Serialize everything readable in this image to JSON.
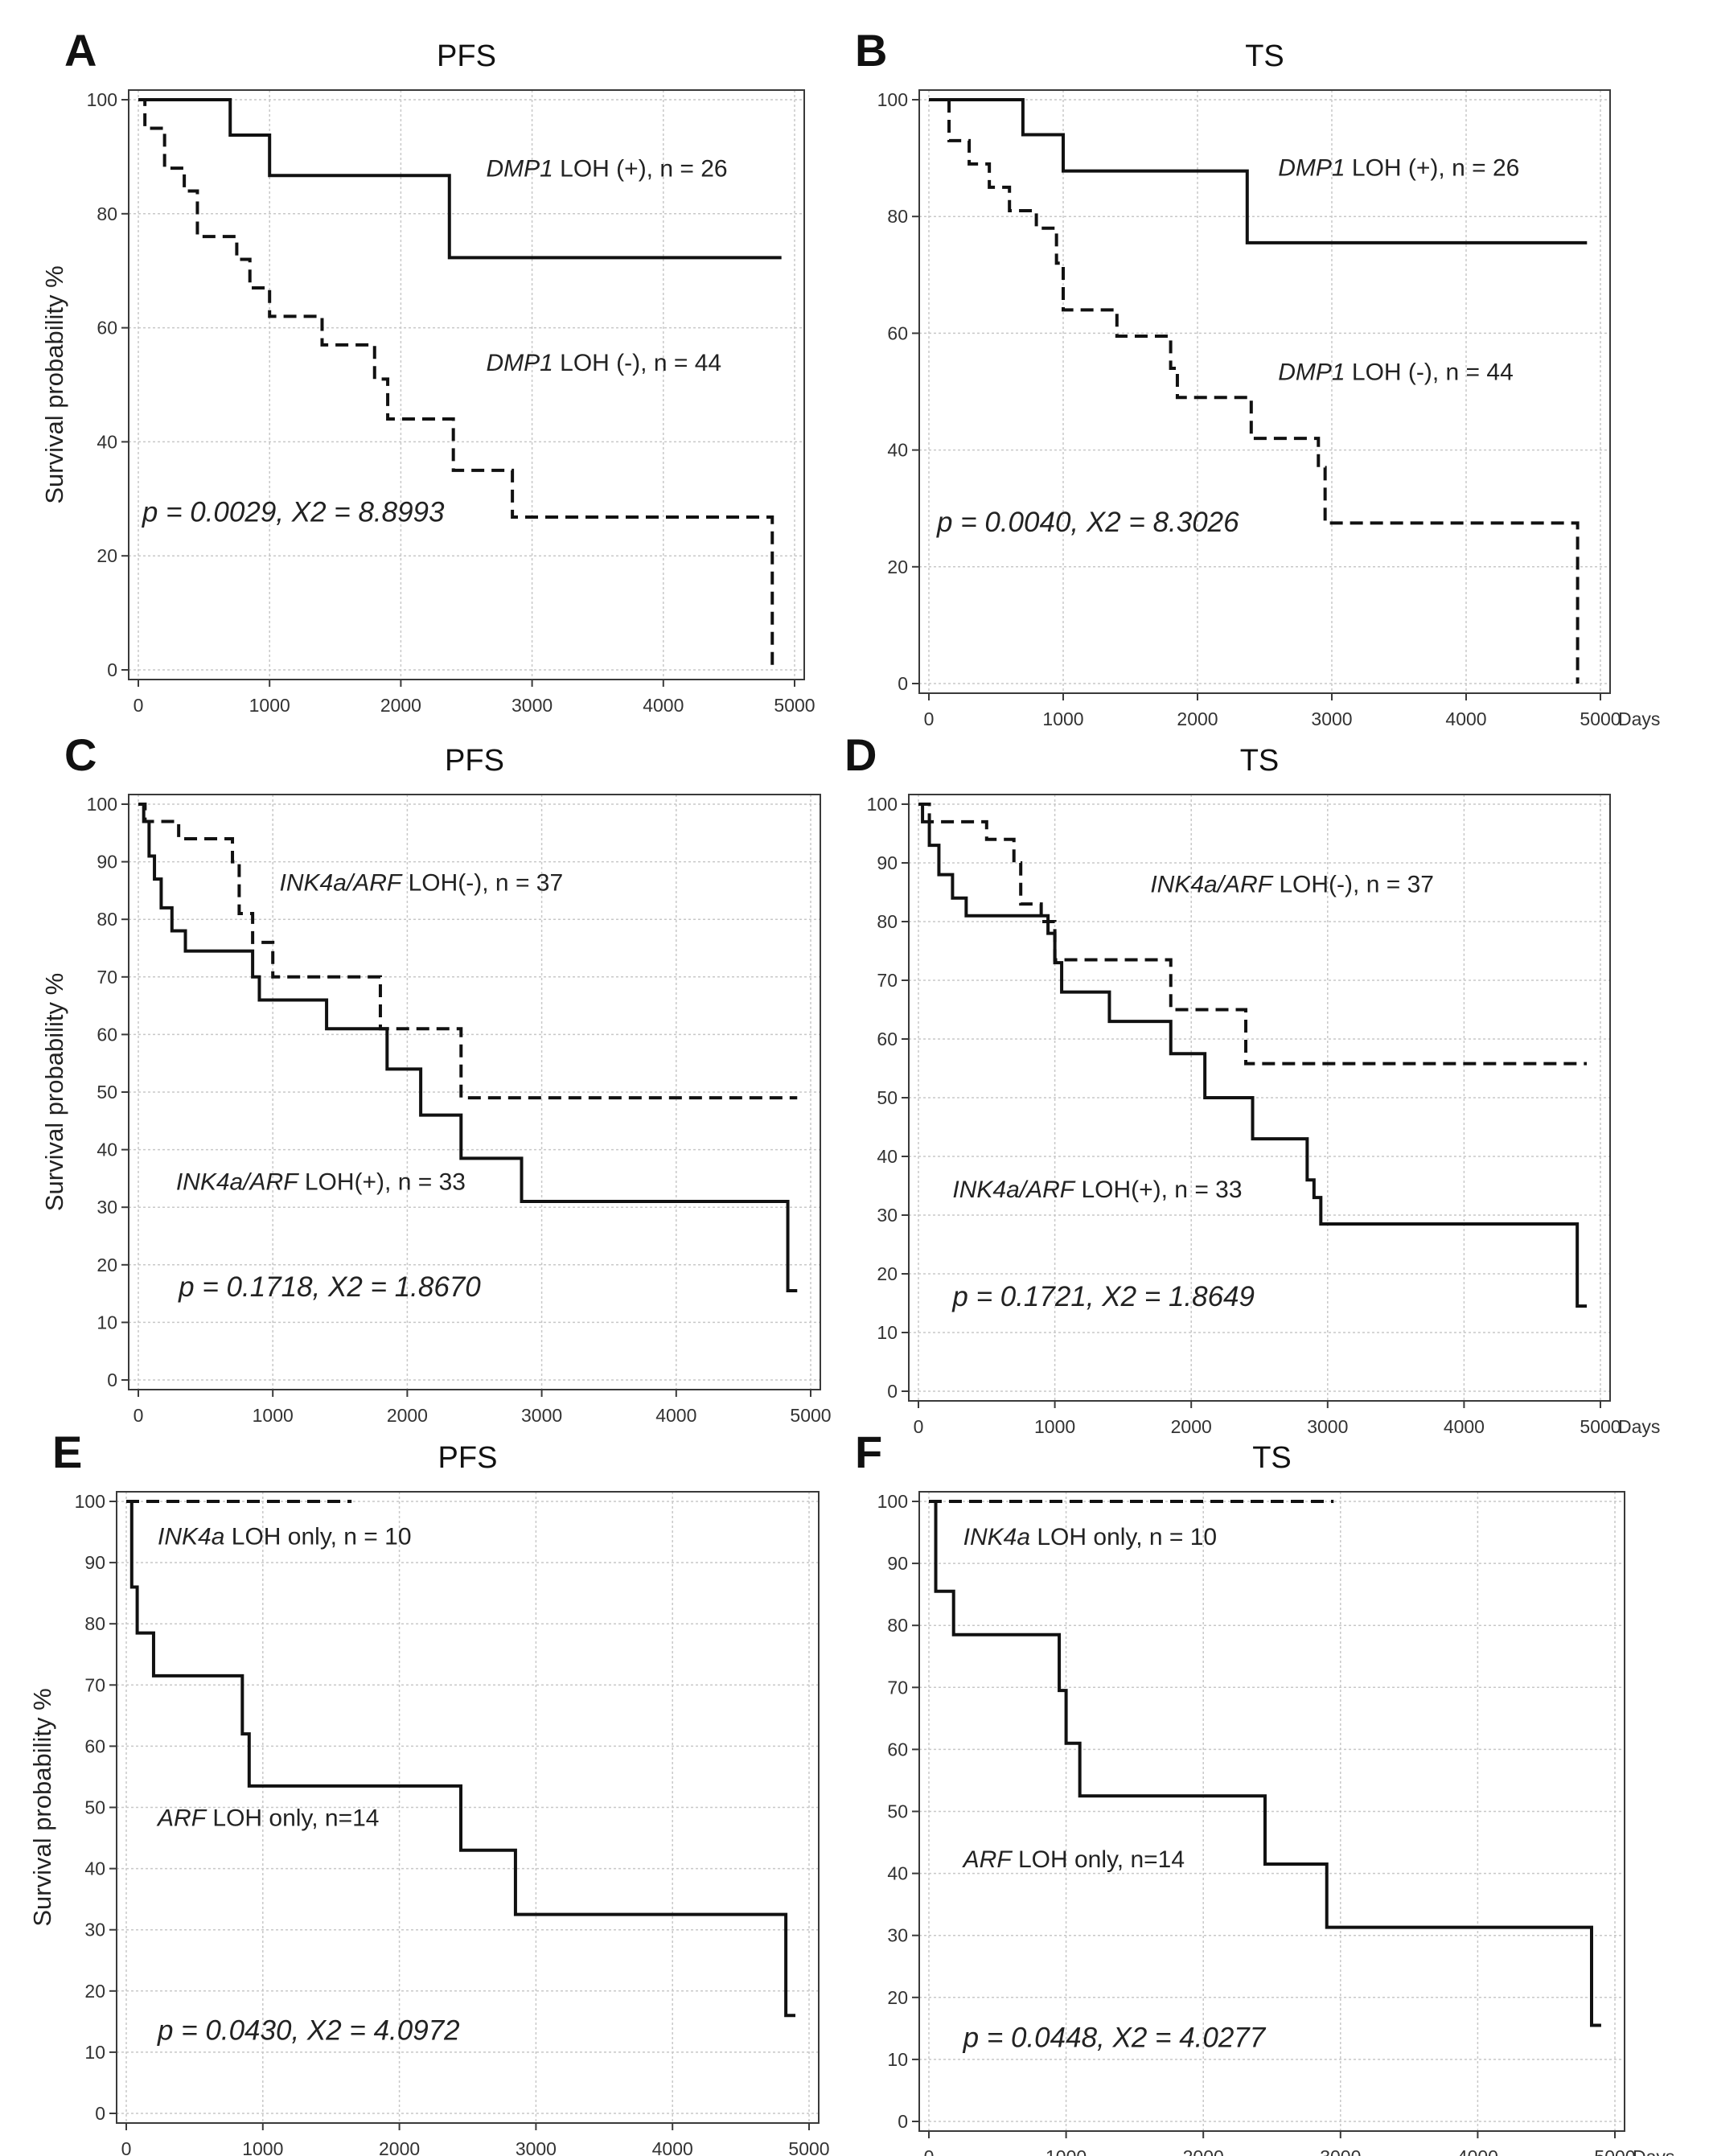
{
  "figure": {
    "days_label": "Days"
  },
  "chart_data": [
    {
      "type": "line",
      "panel_letter": "A",
      "title": "PFS",
      "ylabel": "Survival probability %",
      "xlabel": "",
      "show_days": false,
      "xlim": [
        0,
        5000
      ],
      "ylim": [
        0,
        100
      ],
      "xticks": [
        0,
        1000,
        2000,
        3000,
        4000,
        5000
      ],
      "yticks": [
        0,
        20,
        40,
        60,
        80,
        100
      ],
      "yticklabels": [
        "0",
        "20",
        "40",
        "60",
        "80",
        "100"
      ],
      "series": [
        {
          "name": "DMP1 LOH (+), n = 26",
          "style": "solid",
          "x": [
            0,
            700,
            1000,
            2370,
            4900
          ],
          "y": [
            100,
            93.8,
            86.7,
            72.3,
            72.3
          ]
        },
        {
          "name": "DMP1 LOH (-), n = 44",
          "style": "dashed",
          "x": [
            0,
            50,
            200,
            350,
            450,
            750,
            850,
            1000,
            1400,
            1800,
            1900,
            2400,
            2850,
            4800,
            4830
          ],
          "y": [
            100,
            95,
            88,
            84,
            76,
            72,
            67,
            62,
            57,
            51,
            44,
            35,
            26.8,
            26.8,
            0
          ]
        }
      ],
      "annotations": [
        {
          "id": "ann1",
          "italic": "DMP1",
          "text": " LOH (+), n = 26",
          "x": 2650,
          "y": 86.5,
          "anchor": "start",
          "size": 30
        },
        {
          "id": "ann2",
          "italic": "DMP1",
          "text": " LOH (-), n = 44",
          "x": 2650,
          "y": 52.5,
          "anchor": "start",
          "size": 30
        },
        {
          "id": "stat",
          "italic": "",
          "text": "p = 0.0029, X2 = 8.8993",
          "x": 30,
          "y": 26,
          "anchor": "start",
          "size": 35,
          "stat": true
        }
      ]
    },
    {
      "type": "line",
      "panel_letter": "B",
      "title": "TS",
      "ylabel": "",
      "xlabel": "Days",
      "show_days": true,
      "xlim": [
        0,
        5000
      ],
      "ylim": [
        0,
        100
      ],
      "xticks": [
        0,
        1000,
        2000,
        3000,
        4000,
        5000
      ],
      "yticks": [
        0,
        20,
        40,
        60,
        80,
        100
      ],
      "yticklabels": [
        "0",
        "20",
        "40",
        "60",
        "80",
        "100"
      ],
      "series": [
        {
          "name": "DMP1 LOH (+), n = 26",
          "style": "solid",
          "x": [
            0,
            700,
            1000,
            2370,
            4900
          ],
          "y": [
            100,
            94,
            87.8,
            75.5,
            75.5
          ]
        },
        {
          "name": "DMP1 LOH (-), n = 44",
          "style": "dashed",
          "x": [
            0,
            150,
            300,
            450,
            600,
            800,
            950,
            1000,
            1400,
            1800,
            1850,
            2400,
            2900,
            2950,
            4800,
            4830
          ],
          "y": [
            100,
            93,
            89,
            85,
            81,
            78,
            72,
            64,
            59.5,
            54,
            49,
            42,
            37,
            27.5,
            27.5,
            0
          ]
        }
      ],
      "annotations": [
        {
          "id": "ann1",
          "italic": "DMP1",
          "text": " LOH (+), n = 26",
          "x": 2600,
          "y": 87,
          "anchor": "start",
          "size": 30
        },
        {
          "id": "ann2",
          "italic": "DMP1",
          "text": " LOH (-), n = 44",
          "x": 2600,
          "y": 52,
          "anchor": "start",
          "size": 30
        },
        {
          "id": "stat",
          "italic": "",
          "text": "p = 0.0040, X2 = 8.3026",
          "x": 60,
          "y": 26,
          "anchor": "start",
          "size": 35,
          "stat": true
        }
      ]
    },
    {
      "type": "line",
      "panel_letter": "C",
      "title": "PFS",
      "ylabel": "Survival probability %",
      "xlabel": "",
      "show_days": false,
      "xlim": [
        0,
        5000
      ],
      "ylim": [
        0,
        100
      ],
      "xticks": [
        0,
        1000,
        2000,
        3000,
        4000,
        5000
      ],
      "yticks": [
        0,
        10,
        20,
        30,
        40,
        50,
        60,
        70,
        80,
        90,
        100
      ],
      "yticklabels": [
        "0",
        "10",
        "20",
        "30",
        "40",
        "50",
        "60",
        "70",
        "80",
        "90",
        "100"
      ],
      "series": [
        {
          "name": "INK4a/ARF LOH(-), n = 37",
          "style": "dashed",
          "x": [
            0,
            50,
            300,
            700,
            750,
            850,
            1000,
            1800,
            2400,
            4900
          ],
          "y": [
            100,
            97,
            94,
            90,
            81,
            76,
            70,
            61,
            49,
            49
          ]
        },
        {
          "name": "INK4a/ARF LOH(+), n = 33",
          "style": "solid",
          "x": [
            0,
            40,
            80,
            120,
            170,
            250,
            350,
            850,
            900,
            1400,
            1850,
            2100,
            2400,
            2850,
            4800,
            4830,
            4900
          ],
          "y": [
            100,
            97,
            91,
            87,
            82,
            78,
            74.5,
            70,
            66,
            61,
            54,
            46,
            38.5,
            31,
            31,
            15.5,
            15.5
          ]
        }
      ],
      "annotations": [
        {
          "id": "ann1",
          "italic": "INK4a/ARF",
          "text": " LOH(-), n = 37",
          "x": 1050,
          "y": 85,
          "anchor": "start",
          "size": 30
        },
        {
          "id": "ann2",
          "italic": "INK4a/ARF",
          "text": " LOH(+), n = 33",
          "x": 280,
          "y": 33,
          "anchor": "start",
          "size": 30
        },
        {
          "id": "stat",
          "italic": "",
          "text": "p = 0.1718, X2 = 1.8670",
          "x": 300,
          "y": 14.5,
          "anchor": "start",
          "size": 35,
          "stat": true
        }
      ]
    },
    {
      "type": "line",
      "panel_letter": "D",
      "title": "TS",
      "ylabel": "",
      "xlabel": "Days",
      "show_days": true,
      "xlim": [
        0,
        5000
      ],
      "ylim": [
        0,
        100
      ],
      "xticks": [
        0,
        1000,
        2000,
        3000,
        4000,
        5000
      ],
      "yticks": [
        0,
        10,
        20,
        30,
        40,
        50,
        60,
        70,
        80,
        90,
        100
      ],
      "yticklabels": [
        "0",
        "10",
        "20",
        "30",
        "40",
        "50",
        "60",
        "70",
        "80",
        "90",
        "100"
      ],
      "series": [
        {
          "name": "INK4a/ARF LOH(-), n = 37",
          "style": "dashed",
          "x": [
            0,
            80,
            500,
            700,
            750,
            900,
            1000,
            1850,
            2400,
            4900
          ],
          "y": [
            100,
            97,
            94,
            90,
            83,
            80,
            73.5,
            65,
            55.8,
            55.8
          ]
        },
        {
          "name": "INK4a/ARF LOH(+), n = 33",
          "style": "solid",
          "x": [
            0,
            30,
            80,
            150,
            250,
            350,
            950,
            1000,
            1050,
            1400,
            1850,
            2100,
            2450,
            2850,
            2900,
            2950,
            4800,
            4830,
            4900
          ],
          "y": [
            100,
            97,
            93,
            88,
            84,
            81,
            78,
            73,
            68,
            63,
            57.5,
            50,
            43,
            36,
            33,
            28.5,
            28.5,
            14.5,
            14.5
          ]
        }
      ],
      "annotations": [
        {
          "id": "ann1",
          "italic": "INK4a/ARF",
          "text": " LOH(-), n = 37",
          "x": 1700,
          "y": 85,
          "anchor": "start",
          "size": 30
        },
        {
          "id": "ann2",
          "italic": "INK4a/ARF",
          "text": " LOH(+), n = 33",
          "x": 250,
          "y": 33,
          "anchor": "start",
          "size": 30
        },
        {
          "id": "stat",
          "italic": "",
          "text": "p = 0.1721, X2 = 1.8649",
          "x": 250,
          "y": 14.5,
          "anchor": "start",
          "size": 35,
          "stat": true
        }
      ]
    },
    {
      "type": "line",
      "panel_letter": "E",
      "title": "PFS",
      "ylabel": "Survival probability %",
      "xlabel": "",
      "show_days": false,
      "xlim": [
        0,
        5000
      ],
      "ylim": [
        0,
        100
      ],
      "xticks": [
        0,
        1000,
        2000,
        3000,
        4000,
        5000
      ],
      "yticks": [
        0,
        10,
        20,
        30,
        40,
        50,
        60,
        70,
        80,
        90,
        100
      ],
      "yticklabels": [
        "0",
        "10",
        "20",
        "30",
        "40",
        "50",
        "60",
        "70",
        "80",
        "90",
        "100"
      ],
      "series": [
        {
          "name": "INK4a LOH only, n = 10",
          "style": "dashed",
          "x": [
            0,
            1650
          ],
          "y": [
            100,
            100
          ]
        },
        {
          "name": "ARF LOH only, n=14",
          "style": "solid",
          "x": [
            0,
            40,
            80,
            200,
            850,
            900,
            2450,
            2850,
            4800,
            4830,
            4900
          ],
          "y": [
            100,
            86,
            78.5,
            71.5,
            62,
            53.5,
            43,
            32.5,
            32.5,
            16,
            16
          ]
        }
      ],
      "annotations": [
        {
          "id": "ann1",
          "italic": "INK4a",
          "text": " LOH only, n = 10",
          "x": 230,
          "y": 93,
          "anchor": "start",
          "size": 30
        },
        {
          "id": "ann2",
          "italic": "ARF",
          "text": " LOH only, n=14",
          "x": 230,
          "y": 47,
          "anchor": "start",
          "size": 30
        },
        {
          "id": "stat",
          "italic": "",
          "text": "p = 0.0430, X2 = 4.0972",
          "x": 230,
          "y": 12,
          "anchor": "start",
          "size": 35,
          "stat": true
        }
      ]
    },
    {
      "type": "line",
      "panel_letter": "F",
      "title": "TS",
      "ylabel": "",
      "xlabel": "Days",
      "show_days": true,
      "xlim": [
        0,
        5000
      ],
      "ylim": [
        0,
        100
      ],
      "xticks": [
        0,
        1000,
        2000,
        3000,
        4000,
        5000
      ],
      "yticks": [
        0,
        10,
        20,
        30,
        40,
        50,
        60,
        70,
        80,
        90,
        100
      ],
      "yticklabels": [
        "0",
        "10",
        "20",
        "30",
        "40",
        "50",
        "60",
        "70",
        "80",
        "90",
        "100"
      ],
      "series": [
        {
          "name": "INK4a LOH only, n = 10",
          "style": "dashed",
          "x": [
            0,
            2950
          ],
          "y": [
            100,
            100
          ]
        },
        {
          "name": "ARF LOH only, n=14",
          "style": "solid",
          "x": [
            0,
            50,
            180,
            950,
            1000,
            1100,
            2450,
            2900,
            4800,
            4830,
            4900
          ],
          "y": [
            100,
            85.5,
            78.5,
            69.5,
            61,
            52.5,
            41.5,
            31.3,
            31.3,
            15.5,
            15.5
          ]
        }
      ],
      "annotations": [
        {
          "id": "ann1",
          "italic": "INK4a",
          "text": " LOH only, n = 10",
          "x": 250,
          "y": 93,
          "anchor": "start",
          "size": 30
        },
        {
          "id": "ann2",
          "italic": "ARF",
          "text": " LOH only, n=14",
          "x": 250,
          "y": 41,
          "anchor": "start",
          "size": 30
        },
        {
          "id": "stat",
          "italic": "",
          "text": "p = 0.0448, X2 = 4.0277",
          "x": 250,
          "y": 12,
          "anchor": "start",
          "size": 35,
          "stat": true
        }
      ]
    }
  ]
}
